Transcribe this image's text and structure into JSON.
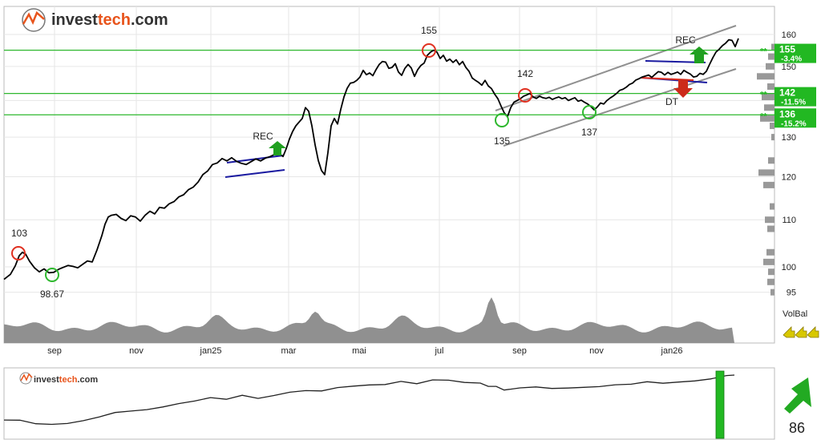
{
  "brand": {
    "name_a": "invest",
    "name_b": "tech",
    "name_c": ".com"
  },
  "chart_data": [
    {
      "type": "line",
      "y_axis": {
        "ticks": [
          95,
          100,
          110,
          120,
          130,
          140,
          150,
          160
        ],
        "log_scale": true,
        "range": [
          95,
          162
        ]
      },
      "x_axis": {
        "ticks": [
          "sep",
          "nov",
          "jan25",
          "mar",
          "mai",
          "jul",
          "sep",
          "nov",
          "jan26"
        ]
      },
      "grid": true,
      "series": [
        {
          "values": [
            [
              0,
              97.5
            ],
            [
              8,
              98.5
            ],
            [
              14,
              100.2
            ],
            [
              19,
              102.3
            ],
            [
              23,
              103.0
            ],
            [
              27,
              102.6
            ],
            [
              32,
              101.1
            ],
            [
              38,
              99.8
            ],
            [
              44,
              99.0
            ],
            [
              50,
              99.6
            ],
            [
              56,
              98.8
            ],
            [
              62,
              98.9
            ],
            [
              68,
              99.5
            ],
            [
              74,
              99.9
            ],
            [
              80,
              100.3
            ],
            [
              86,
              100.1
            ],
            [
              92,
              99.8
            ],
            [
              98,
              100.5
            ],
            [
              104,
              101.2
            ],
            [
              110,
              101.0
            ],
            [
              116,
              103.5
            ],
            [
              122,
              106.5
            ],
            [
              126,
              109.0
            ],
            [
              130,
              110.6
            ],
            [
              134,
              111.0
            ],
            [
              140,
              111.2
            ],
            [
              146,
              110.3
            ],
            [
              152,
              109.8
            ],
            [
              158,
              110.9
            ],
            [
              164,
              110.6
            ],
            [
              170,
              109.7
            ],
            [
              176,
              111.0
            ],
            [
              182,
              111.9
            ],
            [
              188,
              111.3
            ],
            [
              194,
              112.8
            ],
            [
              200,
              112.6
            ],
            [
              206,
              113.6
            ],
            [
              212,
              114.1
            ],
            [
              218,
              115.2
            ],
            [
              224,
              115.7
            ],
            [
              230,
              116.9
            ],
            [
              236,
              117.5
            ],
            [
              242,
              118.7
            ],
            [
              248,
              120.5
            ],
            [
              254,
              121.4
            ],
            [
              260,
              123.0
            ],
            [
              266,
              123.4
            ],
            [
              272,
              124.5
            ],
            [
              278,
              123.9
            ],
            [
              284,
              124.7
            ],
            [
              290,
              123.8
            ],
            [
              296,
              123.3
            ],
            [
              302,
              123.0
            ],
            [
              308,
              123.7
            ],
            [
              314,
              124.4
            ],
            [
              320,
              123.9
            ],
            [
              326,
              124.6
            ],
            [
              332,
              125.0
            ],
            [
              338,
              125.6
            ],
            [
              343,
              125.8
            ],
            [
              348,
              125.0
            ],
            [
              352,
              127.0
            ],
            [
              356,
              129.5
            ],
            [
              360,
              131.5
            ],
            [
              364,
              133.0
            ],
            [
              368,
              134.0
            ],
            [
              372,
              135.0
            ],
            [
              376,
              138.0
            ],
            [
              380,
              137.0
            ],
            [
              384,
              133.0
            ],
            [
              388,
              128.0
            ],
            [
              392,
              124.0
            ],
            [
              396,
              121.5
            ],
            [
              400,
              120.5
            ],
            [
              404,
              126.0
            ],
            [
              408,
              133.0
            ],
            [
              412,
              135.0
            ],
            [
              416,
              133.5
            ],
            [
              420,
              137.5
            ],
            [
              424,
              141.0
            ],
            [
              428,
              143.5
            ],
            [
              432,
              145.0
            ],
            [
              436,
              145.2
            ],
            [
              440,
              145.8
            ],
            [
              444,
              146.8
            ],
            [
              448,
              148.8
            ],
            [
              452,
              147.5
            ],
            [
              456,
              148.0
            ],
            [
              460,
              147.2
            ],
            [
              464,
              149.0
            ],
            [
              468,
              150.6
            ],
            [
              472,
              151.5
            ],
            [
              476,
              151.3
            ],
            [
              480,
              149.4
            ],
            [
              484,
              149.7
            ],
            [
              488,
              150.8
            ],
            [
              492,
              148.3
            ],
            [
              496,
              147.3
            ],
            [
              500,
              149.4
            ],
            [
              504,
              150.6
            ],
            [
              508,
              149.5
            ],
            [
              512,
              147.0
            ],
            [
              516,
              149.0
            ],
            [
              520,
              150.3
            ],
            [
              524,
              151.0
            ],
            [
              528,
              153.4
            ],
            [
              532,
              154.4
            ],
            [
              536,
              155.0
            ],
            [
              540,
              154.4
            ],
            [
              544,
              152.4
            ],
            [
              548,
              153.4
            ],
            [
              552,
              151.6
            ],
            [
              556,
              152.2
            ],
            [
              560,
              151.2
            ],
            [
              564,
              152.0
            ],
            [
              568,
              150.5
            ],
            [
              572,
              151.5
            ],
            [
              576,
              149.7
            ],
            [
              580,
              148.5
            ],
            [
              584,
              146.5
            ],
            [
              588,
              145.8
            ],
            [
              592,
              145.2
            ],
            [
              596,
              144.4
            ],
            [
              600,
              145.8
            ],
            [
              604,
              144.2
            ],
            [
              608,
              143.4
            ],
            [
              612,
              141.8
            ],
            [
              616,
              140.5
            ],
            [
              620,
              138.4
            ],
            [
              624,
              136.5
            ],
            [
              628,
              135.5
            ],
            [
              632,
              138.0
            ],
            [
              636,
              139.5
            ],
            [
              640,
              140.0
            ],
            [
              644,
              140.5
            ],
            [
              648,
              141.2
            ],
            [
              652,
              141.6
            ],
            [
              656,
              142.0
            ],
            [
              660,
              141.0
            ],
            [
              664,
              140.6
            ],
            [
              668,
              141.2
            ],
            [
              672,
              140.8
            ],
            [
              676,
              140.6
            ],
            [
              680,
              140.9
            ],
            [
              684,
              140.3
            ],
            [
              688,
              140.7
            ],
            [
              692,
              141.0
            ],
            [
              696,
              140.5
            ],
            [
              700,
              140.8
            ],
            [
              704,
              140.0
            ],
            [
              708,
              140.4
            ],
            [
              712,
              140.8
            ],
            [
              716,
              139.8
            ],
            [
              720,
              140.1
            ],
            [
              724,
              139.5
            ],
            [
              728,
              139.0
            ],
            [
              732,
              138.3
            ],
            [
              736,
              137.4
            ],
            [
              740,
              138.2
            ],
            [
              744,
              139.3
            ],
            [
              748,
              139.0
            ],
            [
              752,
              140.0
            ],
            [
              756,
              140.7
            ],
            [
              760,
              141.3
            ],
            [
              764,
              142.0
            ],
            [
              768,
              142.9
            ],
            [
              772,
              143.2
            ],
            [
              776,
              143.8
            ],
            [
              780,
              144.6
            ],
            [
              784,
              145.0
            ],
            [
              788,
              145.9
            ],
            [
              792,
              146.3
            ],
            [
              796,
              146.8
            ],
            [
              800,
              147.1
            ],
            [
              804,
              147.4
            ],
            [
              808,
              146.7
            ],
            [
              812,
              147.6
            ],
            [
              816,
              148.4
            ],
            [
              820,
              148.2
            ],
            [
              824,
              147.4
            ],
            [
              828,
              148.2
            ],
            [
              832,
              147.6
            ],
            [
              836,
              147.9
            ],
            [
              840,
              148.3
            ],
            [
              844,
              147.6
            ],
            [
              848,
              148.8
            ],
            [
              852,
              148.2
            ],
            [
              856,
              147.7
            ],
            [
              860,
              146.8
            ],
            [
              864,
              147.0
            ],
            [
              868,
              147.9
            ],
            [
              872,
              147.6
            ],
            [
              876,
              148.5
            ],
            [
              880,
              150.6
            ],
            [
              884,
              152.6
            ],
            [
              888,
              154.4
            ],
            [
              892,
              155.3
            ],
            [
              896,
              156.4
            ],
            [
              900,
              157.2
            ],
            [
              904,
              158.3
            ],
            [
              908,
              158.1
            ],
            [
              912,
              156.1
            ],
            [
              916,
              158.7
            ]
          ]
        }
      ],
      "annotations": [
        "103",
        "98.67",
        "155",
        "142",
        "135",
        "137",
        "REC",
        "REC",
        "DT"
      ],
      "levels": [
        {
          "value": "155",
          "pct": "-3.4%"
        },
        {
          "value": "142",
          "pct": "-11.5%"
        },
        {
          "value": "136",
          "pct": "-15.2%"
        }
      ],
      "volume_label": "VolBal",
      "colors": {
        "line": "#000000",
        "support": "#2eb82e",
        "resistance": "#e03020",
        "trend": "#909090",
        "rect": "#1a1aa0",
        "volume": "#909090",
        "level_box": "#22b822",
        "up_arrow": "#20a020",
        "down_arrow": "#cc2a1a",
        "vol_arrows": "#d8c800"
      }
    },
    {
      "type": "line",
      "series": [
        {
          "values": [
            [
              0,
              0.3
            ],
            [
              20,
              0.28
            ],
            [
              40,
              0.24
            ],
            [
              60,
              0.22
            ],
            [
              80,
              0.25
            ],
            [
              100,
              0.27
            ],
            [
              120,
              0.34
            ],
            [
              140,
              0.42
            ],
            [
              160,
              0.41
            ],
            [
              180,
              0.46
            ],
            [
              200,
              0.49
            ],
            [
              220,
              0.54
            ],
            [
              240,
              0.58
            ],
            [
              260,
              0.63
            ],
            [
              280,
              0.62
            ],
            [
              300,
              0.65
            ],
            [
              320,
              0.63
            ],
            [
              340,
              0.67
            ],
            [
              360,
              0.7
            ],
            [
              380,
              0.75
            ],
            [
              400,
              0.73
            ],
            [
              420,
              0.79
            ],
            [
              440,
              0.8
            ],
            [
              460,
              0.83
            ],
            [
              480,
              0.84
            ],
            [
              500,
              0.86
            ],
            [
              520,
              0.86
            ],
            [
              540,
              0.9
            ],
            [
              560,
              0.89
            ],
            [
              580,
              0.87
            ],
            [
              600,
              0.85
            ],
            [
              610,
              0.81
            ],
            [
              620,
              0.79
            ],
            [
              630,
              0.76
            ],
            [
              650,
              0.78
            ],
            [
              670,
              0.78
            ],
            [
              690,
              0.79
            ],
            [
              710,
              0.77
            ],
            [
              730,
              0.79
            ],
            [
              750,
              0.8
            ],
            [
              770,
              0.83
            ],
            [
              790,
              0.84
            ],
            [
              810,
              0.86
            ],
            [
              830,
              0.87
            ],
            [
              850,
              0.86
            ],
            [
              870,
              0.88
            ],
            [
              890,
              0.93
            ],
            [
              910,
              0.96
            ],
            [
              920,
              0.98
            ]
          ]
        }
      ],
      "score": "86"
    }
  ]
}
